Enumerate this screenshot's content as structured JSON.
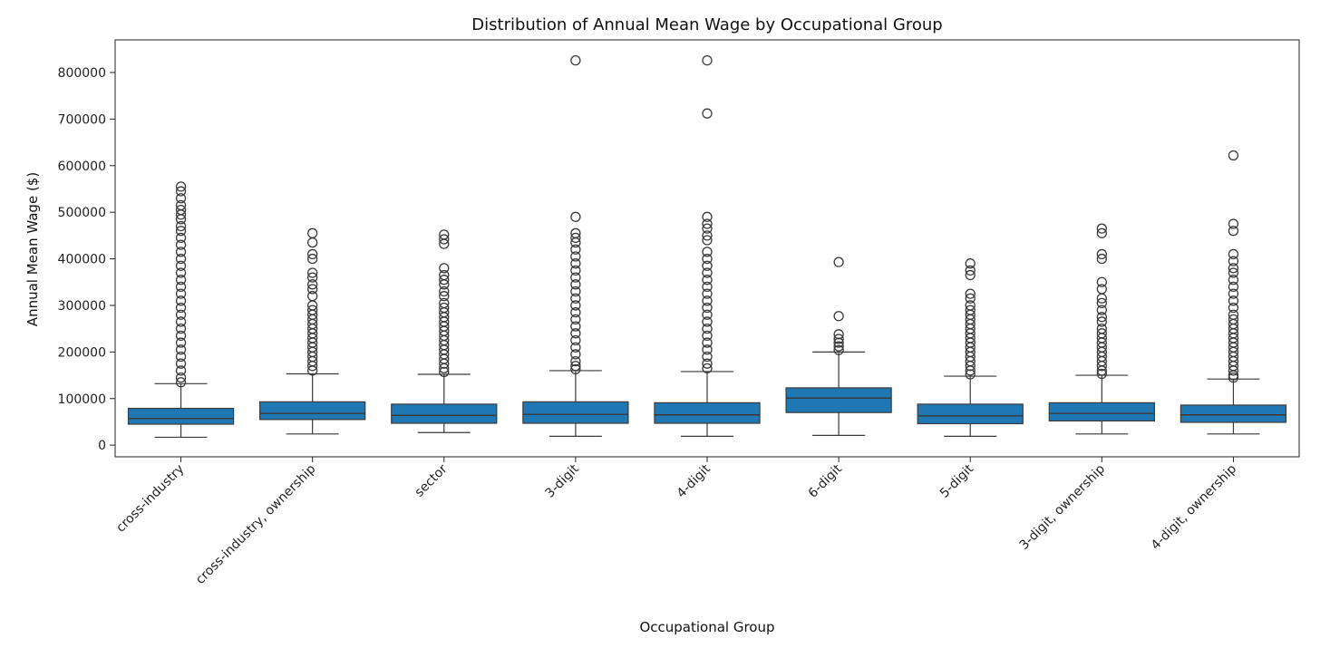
{
  "chart_data": {
    "type": "boxplot",
    "title": "Distribution of Annual Mean Wage by Occupational Group",
    "xlabel": "Occupational Group",
    "ylabel": "Annual Mean Wage ($)",
    "ylim": [
      -25000,
      870000
    ],
    "yticks": [
      0,
      100000,
      200000,
      300000,
      400000,
      500000,
      600000,
      700000,
      800000
    ],
    "ytick_labels": [
      "0",
      "100000",
      "200000",
      "300000",
      "400000",
      "500000",
      "600000",
      "700000",
      "800000"
    ],
    "grid": false,
    "colors": {
      "box": "#1f77b4",
      "line": "#3a3a3a"
    },
    "categories": [
      "cross-industry",
      "cross-industry, ownership",
      "sector",
      "3-digit",
      "4-digit",
      "6-digit",
      "5-digit",
      "3-digit, ownership",
      "4-digit, ownership"
    ],
    "boxes": [
      {
        "min": 17000,
        "q1": 45000,
        "median": 57000,
        "q3": 79000,
        "max": 132000,
        "outliers": [
          555000,
          545000,
          530000,
          515000,
          505000,
          495000,
          485000,
          470000,
          460000,
          445000,
          430000,
          415000,
          400000,
          385000,
          370000,
          355000,
          340000,
          325000,
          310000,
          295000,
          280000,
          265000,
          250000,
          235000,
          220000,
          205000,
          190000,
          175000,
          160000,
          145000,
          135000
        ]
      },
      {
        "min": 24000,
        "q1": 55000,
        "median": 68000,
        "q3": 93000,
        "max": 153000,
        "outliers": [
          455000,
          435000,
          410000,
          400000,
          370000,
          360000,
          345000,
          335000,
          320000,
          300000,
          290000,
          280000,
          270000,
          260000,
          250000,
          240000,
          230000,
          220000,
          210000,
          200000,
          190000,
          180000,
          170000,
          160000
        ]
      },
      {
        "min": 27000,
        "q1": 47000,
        "median": 64000,
        "q3": 88000,
        "max": 152000,
        "outliers": [
          452000,
          442000,
          432000,
          380000,
          365000,
          355000,
          345000,
          330000,
          320000,
          305000,
          295000,
          285000,
          275000,
          265000,
          255000,
          245000,
          235000,
          225000,
          215000,
          205000,
          195000,
          185000,
          175000,
          165000,
          157000
        ]
      },
      {
        "min": 19000,
        "q1": 47000,
        "median": 66000,
        "q3": 93000,
        "max": 160000,
        "outliers": [
          826000,
          490000,
          455000,
          445000,
          435000,
          420000,
          405000,
          390000,
          375000,
          360000,
          345000,
          330000,
          315000,
          300000,
          285000,
          270000,
          255000,
          240000,
          225000,
          210000,
          195000,
          180000,
          170000,
          163000
        ]
      },
      {
        "min": 19000,
        "q1": 47000,
        "median": 65000,
        "q3": 91000,
        "max": 158000,
        "outliers": [
          826000,
          712000,
          490000,
          475000,
          465000,
          450000,
          440000,
          415000,
          400000,
          385000,
          370000,
          355000,
          340000,
          325000,
          310000,
          295000,
          280000,
          265000,
          250000,
          235000,
          220000,
          205000,
          190000,
          175000,
          165000
        ]
      },
      {
        "min": 21000,
        "q1": 70000,
        "median": 101000,
        "q3": 123000,
        "max": 200000,
        "outliers": [
          393000,
          277000,
          238000,
          228000,
          220000,
          212000,
          204000
        ]
      },
      {
        "min": 19000,
        "q1": 46000,
        "median": 63000,
        "q3": 88000,
        "max": 148000,
        "outliers": [
          390000,
          375000,
          365000,
          325000,
          315000,
          300000,
          290000,
          280000,
          270000,
          260000,
          250000,
          240000,
          230000,
          220000,
          210000,
          200000,
          190000,
          180000,
          170000,
          160000,
          152000
        ]
      },
      {
        "min": 24000,
        "q1": 52000,
        "median": 68000,
        "q3": 91000,
        "max": 150000,
        "outliers": [
          465000,
          455000,
          410000,
          400000,
          350000,
          335000,
          315000,
          305000,
          290000,
          275000,
          265000,
          250000,
          240000,
          230000,
          220000,
          210000,
          200000,
          190000,
          180000,
          170000,
          160000,
          153000
        ]
      },
      {
        "min": 24000,
        "q1": 49000,
        "median": 65000,
        "q3": 86000,
        "max": 142000,
        "outliers": [
          622000,
          475000,
          460000,
          410000,
          395000,
          380000,
          370000,
          355000,
          340000,
          325000,
          310000,
          295000,
          280000,
          270000,
          260000,
          250000,
          240000,
          230000,
          220000,
          210000,
          200000,
          190000,
          180000,
          170000,
          160000,
          150000,
          145000
        ]
      }
    ]
  }
}
